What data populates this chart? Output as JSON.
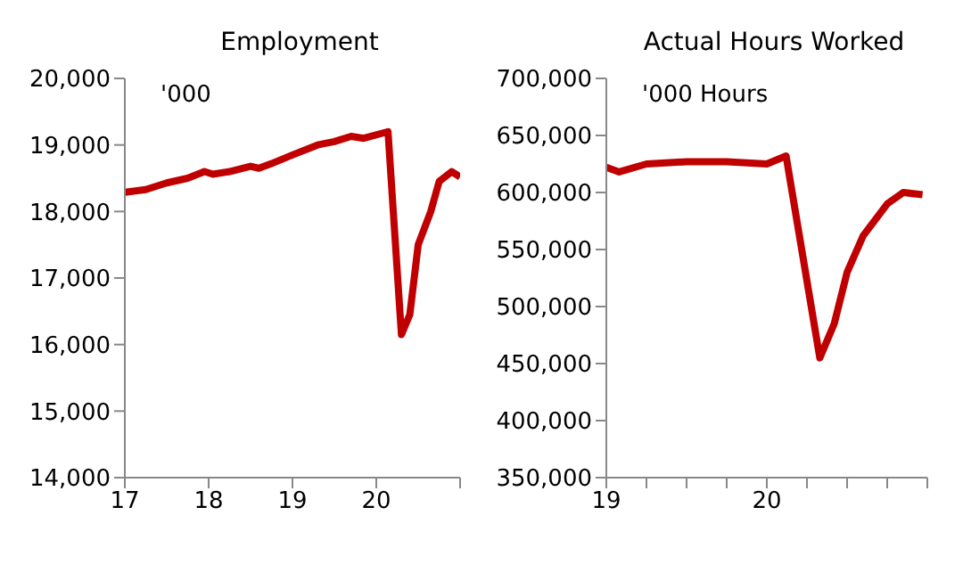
{
  "chart_data": [
    {
      "type": "line",
      "title": "Employment",
      "annotations": [
        "'000"
      ],
      "xlim": [
        17,
        21
      ],
      "xticks": [
        17,
        18,
        19,
        20,
        {
          "value": 21,
          "label": null
        }
      ],
      "ylim": [
        14000,
        20000
      ],
      "yticks": [
        {
          "value": 14000,
          "label": "14,000"
        },
        {
          "value": 15000,
          "label": "15,000"
        },
        {
          "value": 16000,
          "label": "16,000"
        },
        {
          "value": 17000,
          "label": "17,000"
        },
        {
          "value": 18000,
          "label": "18,000"
        },
        {
          "value": 19000,
          "label": "19,000"
        },
        {
          "value": 20000,
          "label": "20,000"
        }
      ],
      "grid": false,
      "legend": false,
      "marker": "none",
      "line_style": "solid",
      "x": [
        17,
        17.25,
        17.5,
        17.75,
        17.95,
        18.05,
        18.25,
        18.5,
        18.6,
        18.75,
        19,
        19.3,
        19.5,
        19.7,
        19.85,
        20.14,
        20.3,
        20.4,
        20.5,
        20.65,
        20.75,
        20.9,
        21
      ],
      "series": [
        {
          "color": "#c00000",
          "values": [
            18290,
            18330,
            18430,
            18500,
            18600,
            18560,
            18600,
            18680,
            18650,
            18720,
            18850,
            19000,
            19050,
            19130,
            19100,
            19200,
            16150,
            16450,
            17500,
            18000,
            18450,
            18600,
            18520
          ]
        }
      ]
    },
    {
      "type": "line",
      "title": "Actual Hours Worked",
      "annotations": [
        "'000 Hours"
      ],
      "xlim": [
        19,
        21
      ],
      "xticks": [
        19,
        {
          "value": 19.25,
          "label": null
        },
        {
          "value": 19.5,
          "label": null
        },
        {
          "value": 19.75,
          "label": null
        },
        20,
        {
          "value": 20.25,
          "label": null
        },
        {
          "value": 20.5,
          "label": null
        },
        {
          "value": 20.75,
          "label": null
        },
        {
          "value": 21,
          "label": null
        }
      ],
      "ylim": [
        350000,
        700000
      ],
      "yticks": [
        {
          "value": 350000,
          "label": "350,000"
        },
        {
          "value": 400000,
          "label": "400,000"
        },
        {
          "value": 450000,
          "label": "450,000"
        },
        {
          "value": 500000,
          "label": "500,000"
        },
        {
          "value": 550000,
          "label": "550,000"
        },
        {
          "value": 600000,
          "label": "600,000"
        },
        {
          "value": 650000,
          "label": "650,000"
        },
        {
          "value": 700000,
          "label": "700,000"
        }
      ],
      "grid": false,
      "legend": false,
      "marker": "none",
      "line_style": "solid",
      "x": [
        19,
        19.08,
        19.25,
        19.5,
        19.75,
        20,
        20.12,
        20.33,
        20.42,
        20.5,
        20.6,
        20.75,
        20.85,
        20.97
      ],
      "series": [
        {
          "color": "#c00000",
          "values": [
            622000,
            618000,
            625000,
            627000,
            627000,
            625000,
            632000,
            455000,
            485000,
            530000,
            562000,
            590000,
            600000,
            598000
          ]
        }
      ]
    }
  ]
}
